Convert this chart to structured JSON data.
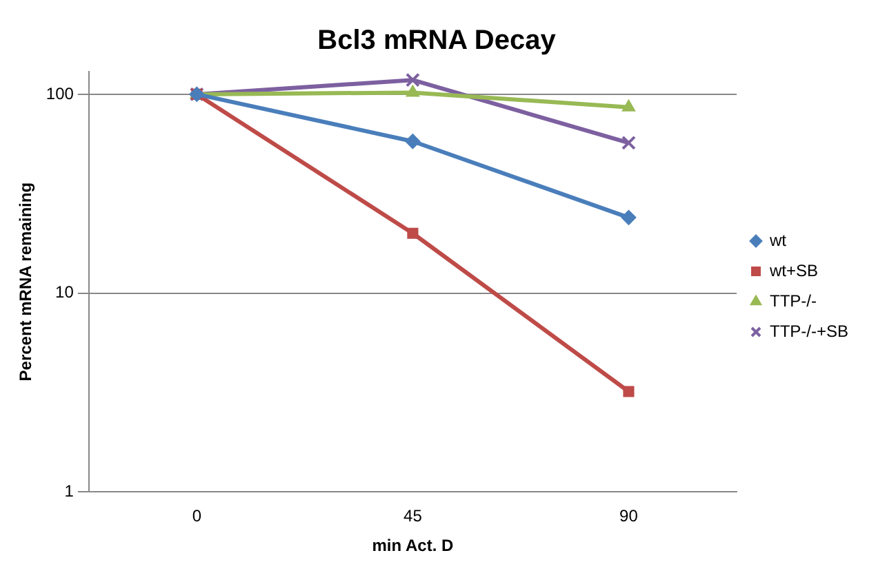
{
  "chart_data": {
    "type": "line",
    "title": "Bcl3 mRNA Decay",
    "xlabel": "min Act. D",
    "ylabel": "Percent mRNA remaining",
    "categories": [
      "0",
      "45",
      "90"
    ],
    "series": [
      {
        "name": "wt",
        "color": "#4a7ebb",
        "marker": "diamond",
        "values": [
          100,
          58,
          24
        ]
      },
      {
        "name": "wt+SB",
        "color": "#be4b48",
        "marker": "square",
        "values": [
          100,
          20,
          3.2
        ]
      },
      {
        "name": "TTP-/-",
        "color": "#98b954",
        "marker": "triangle",
        "values": [
          100,
          102,
          86
        ]
      },
      {
        "name": "TTP-/-+SB",
        "color": "#7d60a0",
        "marker": "cross",
        "values": [
          100,
          118,
          57
        ]
      }
    ],
    "log": "y",
    "ylim": [
      1,
      130
    ],
    "yticks": [
      1,
      10,
      100
    ],
    "grid": "y",
    "legend": "right"
  }
}
